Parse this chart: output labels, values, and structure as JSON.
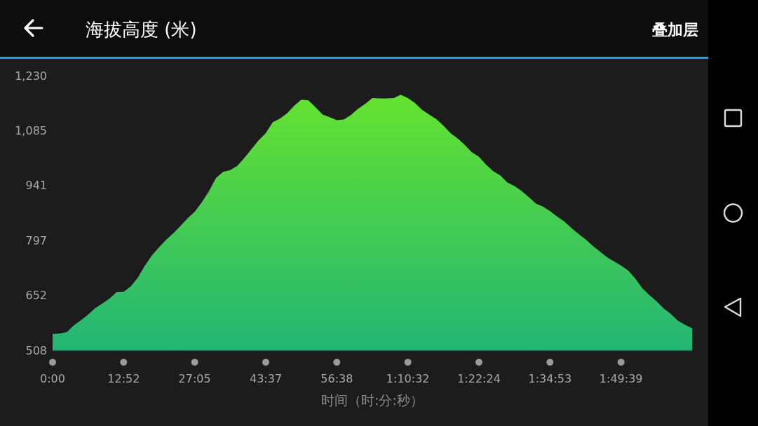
{
  "chart_data": {
    "type": "area",
    "title": "海拔高度 (米)",
    "xlabel": "时间（时:分:秒）",
    "annotations": [
      "叠加层"
    ],
    "categories": [
      "0:00",
      null,
      null,
      null,
      null,
      null,
      null,
      null,
      null,
      null,
      "12:52",
      null,
      null,
      null,
      null,
      null,
      null,
      null,
      null,
      null,
      "27:05",
      null,
      null,
      null,
      null,
      null,
      null,
      null,
      null,
      null,
      "43:37",
      null,
      null,
      null,
      null,
      null,
      null,
      null,
      null,
      null,
      "56:38",
      null,
      null,
      null,
      null,
      null,
      null,
      null,
      null,
      null,
      "1:10:32",
      null,
      null,
      null,
      null,
      null,
      null,
      null,
      null,
      null,
      "1:22:24",
      null,
      null,
      null,
      null,
      null,
      null,
      null,
      null,
      null,
      "1:34:53",
      null,
      null,
      null,
      null,
      null,
      null,
      null,
      null,
      null,
      "1:49:39",
      null,
      null,
      null,
      null,
      null,
      null,
      null,
      null,
      null,
      null
    ],
    "ylim": [
      508,
      1230
    ],
    "yticks": [
      508,
      652,
      797,
      941,
      {
        "value": 1085,
        "label": "1,085"
      },
      {
        "value": 1230,
        "label": "1,230"
      }
    ],
    "series": [
      {
        "color": "#6ae62a",
        "values": [
          551,
          552,
          556,
          574,
          587,
          602,
          619,
          631,
          644,
          661,
          662,
          676,
          699,
          731,
          758,
          779,
          799,
          816,
          835,
          855,
          872,
          897,
          926,
          961,
          977,
          982,
          993,
          1014,
          1037,
          1060,
          1079,
          1108,
          1117,
          1131,
          1151,
          1167,
          1165,
          1147,
          1128,
          1121,
          1113,
          1115,
          1127,
          1143,
          1156,
          1171,
          1170,
          1170,
          1171,
          1180,
          1171,
          1158,
          1140,
          1128,
          1116,
          1099,
          1079,
          1065,
          1048,
          1029,
          1017,
          996,
          979,
          968,
          949,
          940,
          927,
          911,
          894,
          886,
          874,
          860,
          847,
          830,
          814,
          800,
          783,
          768,
          753,
          742,
          731,
          718,
          697,
          671,
          653,
          637,
          618,
          604,
          586,
          575,
          566
        ]
      }
    ]
  }
}
